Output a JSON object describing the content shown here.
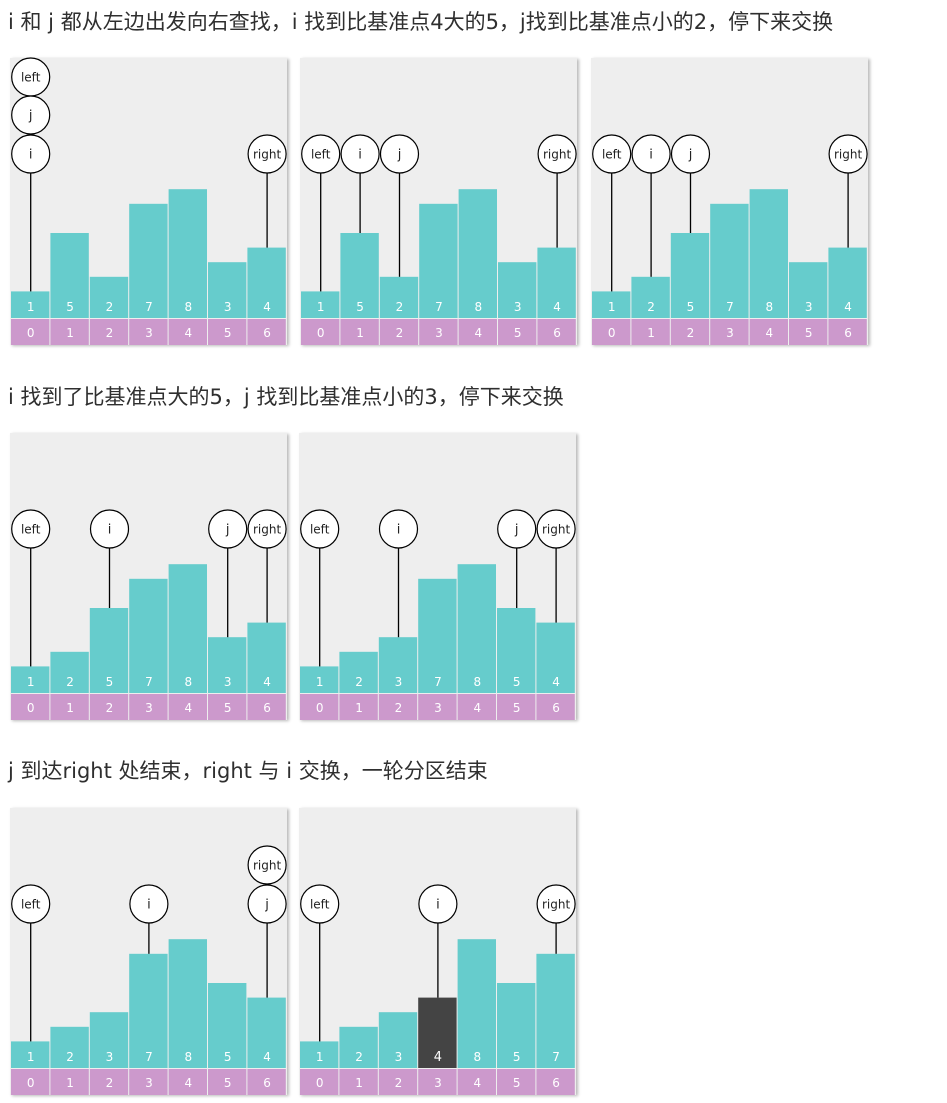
{
  "colors": {
    "bar": "#66cccc",
    "pivot_bar": "#444444",
    "index_cell": "#cc99cc",
    "panel_bg": "#eeeeee",
    "pointer_line": "#000000",
    "circle_fill": "#ffffff"
  },
  "sections": [
    {
      "caption": "i 和 j 都从左边出发向右查找，i 找到比基准点4大的5，j找到比基准点小的2，停下来交换",
      "panels": [
        {
          "values": [
            1,
            5,
            2,
            7,
            8,
            3,
            4
          ],
          "indices": [
            0,
            1,
            2,
            3,
            4,
            5,
            6
          ],
          "pivot_highlight": null,
          "pointers": [
            {
              "label": "left",
              "index": 0,
              "level": 2
            },
            {
              "label": "j",
              "index": 0,
              "level": 1
            },
            {
              "label": "i",
              "index": 0,
              "level": 0
            },
            {
              "label": "right",
              "index": 6,
              "level": 0
            }
          ]
        },
        {
          "values": [
            1,
            5,
            2,
            7,
            8,
            3,
            4
          ],
          "indices": [
            0,
            1,
            2,
            3,
            4,
            5,
            6
          ],
          "pivot_highlight": null,
          "pointers": [
            {
              "label": "left",
              "index": 0,
              "level": 0
            },
            {
              "label": "i",
              "index": 1,
              "level": 0
            },
            {
              "label": "j",
              "index": 2,
              "level": 0
            },
            {
              "label": "right",
              "index": 6,
              "level": 0
            }
          ]
        },
        {
          "values": [
            1,
            2,
            5,
            7,
            8,
            3,
            4
          ],
          "indices": [
            0,
            1,
            2,
            3,
            4,
            5,
            6
          ],
          "pivot_highlight": null,
          "pointers": [
            {
              "label": "left",
              "index": 0,
              "level": 0
            },
            {
              "label": "i",
              "index": 1,
              "level": 0
            },
            {
              "label": "j",
              "index": 2,
              "level": 0
            },
            {
              "label": "right",
              "index": 6,
              "level": 0
            }
          ]
        }
      ]
    },
    {
      "caption": "i 找到了比基准点大的5，j 找到比基准点小的3，停下来交换",
      "panels": [
        {
          "values": [
            1,
            2,
            5,
            7,
            8,
            3,
            4
          ],
          "indices": [
            0,
            1,
            2,
            3,
            4,
            5,
            6
          ],
          "pivot_highlight": null,
          "pointers": [
            {
              "label": "left",
              "index": 0,
              "level": 0
            },
            {
              "label": "i",
              "index": 2,
              "level": 0
            },
            {
              "label": "j",
              "index": 5,
              "level": 0
            },
            {
              "label": "right",
              "index": 6,
              "level": 0
            }
          ]
        },
        {
          "values": [
            1,
            2,
            3,
            7,
            8,
            5,
            4
          ],
          "indices": [
            0,
            1,
            2,
            3,
            4,
            5,
            6
          ],
          "pivot_highlight": null,
          "pointers": [
            {
              "label": "left",
              "index": 0,
              "level": 0
            },
            {
              "label": "i",
              "index": 2,
              "level": 0
            },
            {
              "label": "j",
              "index": 5,
              "level": 0
            },
            {
              "label": "right",
              "index": 6,
              "level": 0
            }
          ]
        }
      ]
    },
    {
      "caption": "j 到达right 处结束，right 与 i 交换，一轮分区结束",
      "panels": [
        {
          "values": [
            1,
            2,
            3,
            7,
            8,
            5,
            4
          ],
          "indices": [
            0,
            1,
            2,
            3,
            4,
            5,
            6
          ],
          "pivot_highlight": null,
          "pointers": [
            {
              "label": "left",
              "index": 0,
              "level": 0
            },
            {
              "label": "i",
              "index": 3,
              "level": 0
            },
            {
              "label": "right",
              "index": 6,
              "level": 1
            },
            {
              "label": "j",
              "index": 6,
              "level": 0
            }
          ]
        },
        {
          "values": [
            1,
            2,
            3,
            4,
            8,
            5,
            7
          ],
          "indices": [
            0,
            1,
            2,
            3,
            4,
            5,
            6
          ],
          "pivot_highlight": 3,
          "pointers": [
            {
              "label": "left",
              "index": 0,
              "level": 0
            },
            {
              "label": "i",
              "index": 3,
              "level": 0
            },
            {
              "label": "right",
              "index": 6,
              "level": 0
            }
          ]
        }
      ]
    }
  ]
}
